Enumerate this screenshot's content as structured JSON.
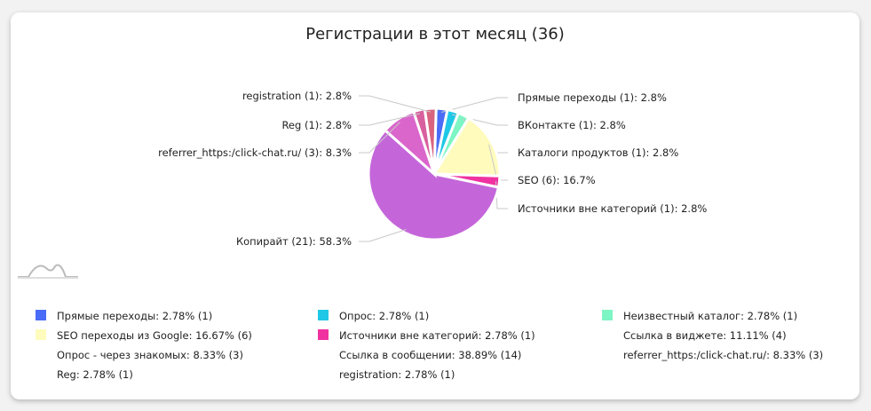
{
  "title": "Регистрации в этот месяц (36)",
  "chart_data": {
    "type": "pie",
    "title": "Регистрации в этот месяц (36)",
    "total": 36,
    "slices": [
      {
        "label": "Прямые переходы (1): 2.8%",
        "name": "Прямые переходы",
        "value": 1,
        "percent": 2.8,
        "color": "#4a6cf7",
        "side": "right"
      },
      {
        "label": "ВКонтакте (1): 2.8%",
        "name": "ВКонтакте",
        "value": 1,
        "percent": 2.8,
        "color": "#1fc8e6",
        "side": "right"
      },
      {
        "label": "Каталоги продуктов (1): 2.8%",
        "name": "Каталоги продуктов",
        "value": 1,
        "percent": 2.8,
        "color": "#7df5c4",
        "side": "right"
      },
      {
        "label": "SEO (6): 16.7%",
        "name": "SEO",
        "value": 6,
        "percent": 16.7,
        "color": "#fffbbd",
        "side": "right"
      },
      {
        "label": "Источники вне категорий (1): 2.8%",
        "name": "Источники вне категорий",
        "value": 1,
        "percent": 2.8,
        "color": "#f032a0",
        "side": "right"
      },
      {
        "label": "Копирайт (21): 58.3%",
        "name": "Копирайт",
        "value": 21,
        "percent": 58.3,
        "color": "#c466da",
        "side": "left"
      },
      {
        "label": "referrer_https:/click-chat.ru/ (3): 8.3%",
        "name": "referrer_https:/click-chat.ru/",
        "value": 3,
        "percent": 8.3,
        "color": "#da66cc",
        "side": "left"
      },
      {
        "label": "Reg (1): 2.8%",
        "name": "Reg",
        "value": 1,
        "percent": 2.8,
        "color": "#d8609e",
        "side": "left"
      },
      {
        "label": "registration (1): 2.8%",
        "name": "registration",
        "value": 1,
        "percent": 2.8,
        "color": "#d9637f",
        "side": "left"
      }
    ],
    "legend": [
      {
        "text": "Прямые переходы: 2.78% (1)",
        "color": "#4a6cf7"
      },
      {
        "text": "Опрос: 2.78% (1)",
        "color": "#1fc8e6"
      },
      {
        "text": "Неизвестный каталог: 2.78% (1)",
        "color": "#7df5c4"
      },
      {
        "text": "SEO переходы из Google: 16.67% (6)",
        "color": "#fffbbd"
      },
      {
        "text": "Источники вне категорий: 2.78% (1)",
        "color": "#f032a0"
      },
      {
        "text": "Ссылка в виджете: 11.11% (4)",
        "color": ""
      },
      {
        "text": "Опрос - через знакомых: 8.33% (3)",
        "color": ""
      },
      {
        "text": "Ссылка в сообщении: 38.89% (14)",
        "color": ""
      },
      {
        "text": "referrer_https:/click-chat.ru/: 8.33% (3)",
        "color": ""
      },
      {
        "text": "Reg: 2.78% (1)",
        "color": ""
      },
      {
        "text": "registration: 2.78% (1)",
        "color": ""
      }
    ]
  },
  "logo_icon": "mountain-line-icon"
}
